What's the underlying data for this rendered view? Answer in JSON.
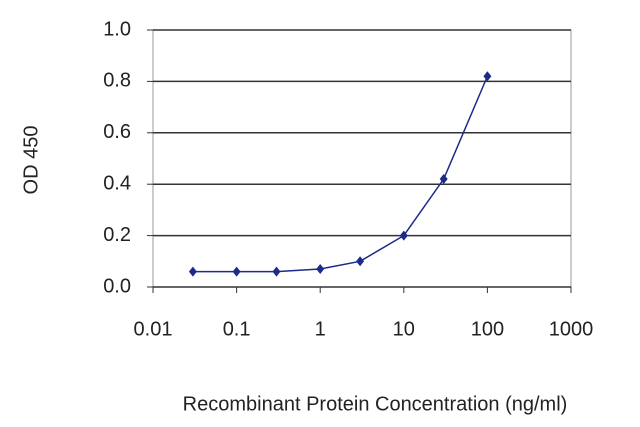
{
  "chart_data": {
    "type": "line",
    "x_label": "Recombinant Protein Concentration (ng/ml)",
    "y_label": "OD 450",
    "x": [
      0.03,
      0.1,
      0.3,
      1,
      3,
      10,
      30,
      100
    ],
    "series": [
      {
        "color": "#1c2a8c",
        "values": [
          0.06,
          0.06,
          0.06,
          0.07,
          0.1,
          0.2,
          0.42,
          0.82
        ]
      }
    ],
    "x_log": true,
    "xlim": [
      0.01,
      1000
    ],
    "xticks": [
      0.01,
      0.1,
      1,
      10,
      100,
      1000
    ],
    "ylim": [
      0,
      1
    ],
    "yticks": [
      {
        "value": 0,
        "label": "0.0"
      },
      0.2,
      0.4,
      0.6,
      0.8,
      {
        "value": 1,
        "label": "1.0"
      }
    ],
    "grid": true
  }
}
